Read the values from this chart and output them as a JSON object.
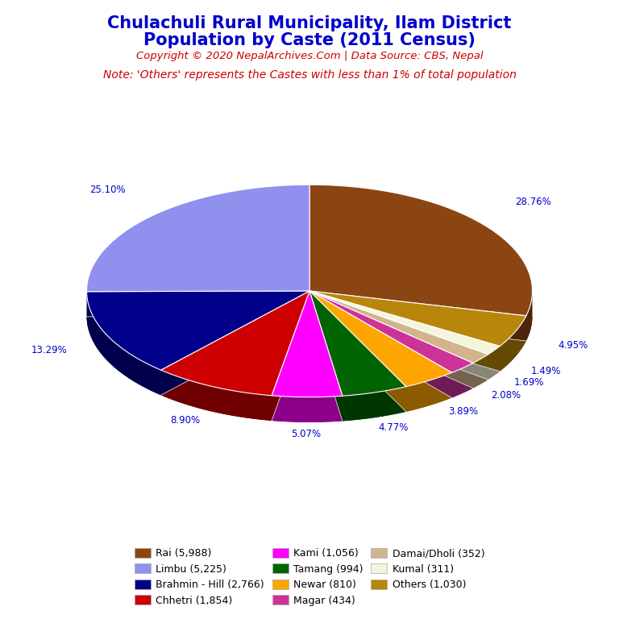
{
  "title_line1": "Chulachuli Rural Municipality, Ilam District",
  "title_line2": "Population by Caste (2011 Census)",
  "title_color": "#0000cc",
  "copyright_text": "Copyright © 2020 NepalArchives.Com | Data Source: CBS, Nepal",
  "copyright_color": "#cc0000",
  "note_text": "Note: 'Others' represents the Castes with less than 1% of total population",
  "note_color": "#cc0000",
  "slices": [
    {
      "label": "Rai (5,988)",
      "value": 5988,
      "pct": 28.76,
      "color": "#8B4513"
    },
    {
      "label": "Others (1,030)",
      "value": 1030,
      "pct": 4.95,
      "color": "#B8860B"
    },
    {
      "label": "Kumal (311)",
      "value": 311,
      "pct": 1.49,
      "color": "#F5F5DC"
    },
    {
      "label": "Damai/Dholi (352)",
      "value": 352,
      "pct": 1.69,
      "color": "#D2B48C"
    },
    {
      "label": "Magar (434)",
      "value": 434,
      "pct": 2.08,
      "color": "#CC3399"
    },
    {
      "label": "Newar (810)",
      "value": 810,
      "pct": 3.89,
      "color": "#FFA500"
    },
    {
      "label": "Tamang (994)",
      "value": 994,
      "pct": 4.77,
      "color": "#006400"
    },
    {
      "label": "Kami (1,056)",
      "value": 1056,
      "pct": 5.07,
      "color": "#FF00FF"
    },
    {
      "label": "Chhetri (1,854)",
      "value": 1854,
      "pct": 8.9,
      "color": "#CC0000"
    },
    {
      "label": "Brahmin - Hill (2,766)",
      "value": 2766,
      "pct": 13.29,
      "color": "#00008B"
    },
    {
      "label": "Limbu (5,225)",
      "value": 5225,
      "pct": 25.1,
      "color": "#9090EE"
    }
  ],
  "legend_order": [
    {
      "label": "Rai (5,988)",
      "color": "#8B4513"
    },
    {
      "label": "Limbu (5,225)",
      "color": "#9090EE"
    },
    {
      "label": "Brahmin - Hill (2,766)",
      "color": "#00008B"
    },
    {
      "label": "Chhetri (1,854)",
      "color": "#CC0000"
    },
    {
      "label": "Kami (1,056)",
      "color": "#FF00FF"
    },
    {
      "label": "Tamang (994)",
      "color": "#006400"
    },
    {
      "label": "Newar (810)",
      "color": "#FFA500"
    },
    {
      "label": "Magar (434)",
      "color": "#CC3399"
    },
    {
      "label": "Damai/Dholi (352)",
      "color": "#D2B48C"
    },
    {
      "label": "Kumal (311)",
      "color": "#F5F5DC"
    },
    {
      "label": "Others (1,030)",
      "color": "#B8860B"
    }
  ],
  "label_color": "#0000cc",
  "background_color": "#ffffff"
}
